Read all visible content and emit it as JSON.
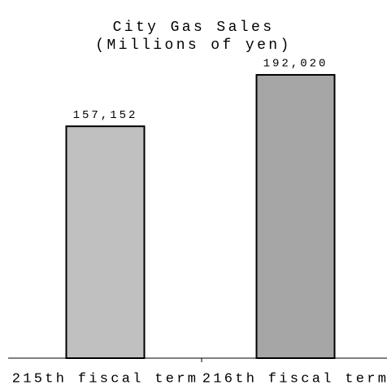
{
  "chart_data": {
    "type": "bar",
    "title": [
      "City Gas Sales",
      "(Millions of yen)"
    ],
    "categories": [
      "215th fiscal term",
      "216th fiscal term"
    ],
    "values": [
      157152,
      192020
    ],
    "value_labels": [
      "157,152",
      "192,020"
    ],
    "colors": [
      "#c0c0c0",
      "#a6a6a6"
    ],
    "ylim": [
      0,
      200000
    ]
  }
}
